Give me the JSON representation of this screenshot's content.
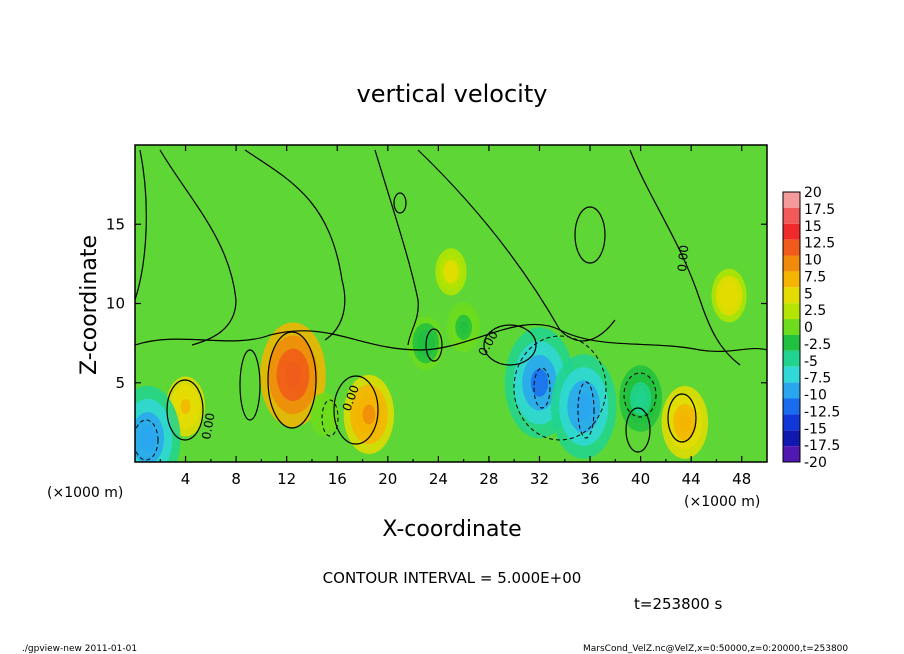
{
  "chart_data": {
    "type": "heatmap",
    "title": "vertical velocity",
    "xlabel": "X-coordinate",
    "ylabel": "Z-coordinate",
    "x_unit_left": "(×1000 m)",
    "x_unit_right": "(×1000 m)",
    "xlim": [
      0,
      50
    ],
    "ylim": [
      0,
      20
    ],
    "x_ticks": [
      "4",
      "8",
      "12",
      "16",
      "20",
      "24",
      "28",
      "32",
      "36",
      "40",
      "44",
      "48"
    ],
    "y_ticks": [
      "5",
      "10",
      "15"
    ],
    "colorbar_levels": [
      "20",
      "17.5",
      "15",
      "12.5",
      "10",
      "7.5",
      "5",
      "2.5",
      "0",
      "-2.5",
      "-5",
      "-7.5",
      "-10",
      "-12.5",
      "-15",
      "-17.5",
      "-20"
    ],
    "colorbar_colors": [
      "#f49a9a",
      "#f25a5a",
      "#f02a2a",
      "#f05a1a",
      "#f08a0a",
      "#f4b400",
      "#e4dc00",
      "#b4e400",
      "#6cdc1c",
      "#20c040",
      "#20d490",
      "#30d8d8",
      "#2aa6ee",
      "#1a6cee",
      "#1038d8",
      "#1018b0",
      "#5018b0"
    ],
    "contour_labels": [
      "0.00",
      "0.00",
      "0.00",
      "0.00"
    ],
    "contour_interval_text": "CONTOUR INTERVAL = 5.000E+00",
    "time_text": "t=253800 s",
    "footer_left": "./gpview-new  2011-01-01",
    "footer_right": "MarsCond_VelZ.nc@VelZ,x=0:50000,z=0:20000,t=253800",
    "features": [
      {
        "x": 12.5,
        "z": 5.5,
        "w": 12.0
      },
      {
        "x": 18.5,
        "z": 3.0,
        "w": 8.0
      },
      {
        "x": 43.5,
        "z": 2.5,
        "w": 7.0
      },
      {
        "x": 4.0,
        "z": 3.5,
        "w": 5.0
      },
      {
        "x": 47.0,
        "z": 10.5,
        "w": 4.0
      },
      {
        "x": 25.0,
        "z": 12.0,
        "w": 3.0
      },
      {
        "x": 1.0,
        "z": 1.5,
        "w": -12.0
      },
      {
        "x": 32.0,
        "z": 5.0,
        "w": -13.0
      },
      {
        "x": 35.5,
        "z": 3.5,
        "w": -12.0
      },
      {
        "x": 40.0,
        "z": 4.0,
        "w": -6.0
      },
      {
        "x": 23.0,
        "z": 7.5,
        "w": -4.0
      },
      {
        "x": 26.0,
        "z": 8.5,
        "w": -3.5
      },
      {
        "x": 15.0,
        "z": 3.0,
        "w": -2.5
      }
    ]
  }
}
